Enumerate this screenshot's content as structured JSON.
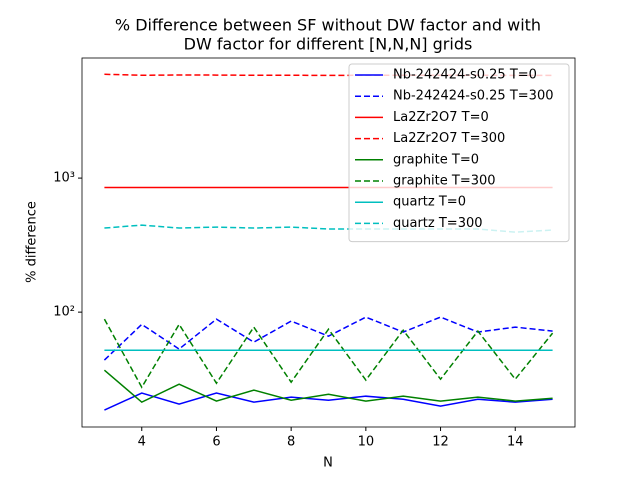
{
  "chart_data": {
    "type": "line",
    "title": [
      "% Difference between SF without DW factor and with",
      "DW factor for different [N,N,N] grids"
    ],
    "xlabel": "N",
    "ylabel": "% difference",
    "x": [
      3,
      4,
      5,
      6,
      7,
      8,
      9,
      10,
      11,
      12,
      13,
      14,
      15
    ],
    "xlim": [
      2.4,
      15.6
    ],
    "xticks": [
      4,
      6,
      8,
      10,
      12,
      14
    ],
    "ylim": [
      13.9,
      7870
    ],
    "yscale": "log",
    "yticks": [
      {
        "value": 100,
        "label": "10²"
      },
      {
        "value": 1000,
        "label": "10³"
      }
    ],
    "legend": "upper right",
    "series": [
      {
        "name": "Nb-242424-s0.25 T=0",
        "color": "#0000ff",
        "linestyle": "solid",
        "values": [
          18.6,
          24.9,
          20.6,
          24.9,
          21.3,
          23.2,
          22.0,
          23.6,
          22.4,
          19.9,
          22.4,
          21.3,
          22.4
        ]
      },
      {
        "name": "Nb-242424-s0.25 T=300",
        "color": "#0000ff",
        "linestyle": "dashed",
        "values": [
          43.9,
          81,
          53,
          88.7,
          59.7,
          85.7,
          66.2,
          91.8,
          71,
          91.8,
          71,
          77.3,
          72.2
        ]
      },
      {
        "name": "La2Zr2O7 T=0",
        "color": "#ff0000",
        "linestyle": "solid",
        "values": [
          850,
          850,
          850,
          850,
          850,
          850,
          850,
          850,
          850,
          850,
          850,
          850,
          850
        ]
      },
      {
        "name": "La2Zr2O7 T=300",
        "color": "#ff0000",
        "linestyle": "dashed",
        "values": [
          5950,
          5850,
          5880,
          5870,
          5850,
          5850,
          5840,
          5850,
          5850,
          5850,
          5850,
          5840,
          5840
        ]
      },
      {
        "name": "graphite T=0",
        "color": "#008000",
        "linestyle": "solid",
        "values": [
          36.9,
          21.3,
          29.0,
          21.7,
          26.2,
          22.0,
          24.4,
          21.7,
          23.6,
          21.7,
          23.2,
          21.7,
          22.8
        ]
      },
      {
        "name": "graphite T=300",
        "color": "#008000",
        "linestyle": "dashed",
        "values": [
          88.7,
          27.5,
          81,
          29.5,
          77.3,
          30,
          74.6,
          31.1,
          73.3,
          31.6,
          72.2,
          31.6,
          69.7
        ]
      },
      {
        "name": "quartz T=0",
        "color": "#00bfbf",
        "linestyle": "solid",
        "values": [
          52,
          52,
          52,
          52,
          52,
          52,
          52,
          52,
          52,
          52,
          52,
          52,
          52
        ]
      },
      {
        "name": "quartz T=300",
        "color": "#00bfbf",
        "linestyle": "dashed",
        "values": [
          424,
          446,
          424,
          431,
          424,
          431,
          417,
          417,
          417,
          417,
          417,
          395,
          410
        ]
      }
    ]
  }
}
